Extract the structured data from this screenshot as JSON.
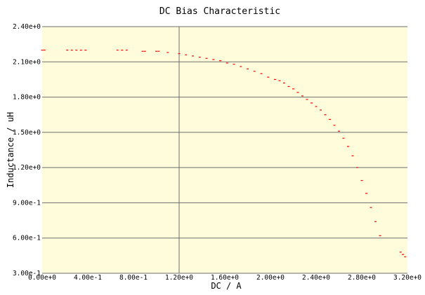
{
  "chart_data": {
    "type": "scatter",
    "title": "DC Bias Characteristic",
    "xlabel": "DC / A",
    "ylabel": "Inductance / uH",
    "xlim": [
      0.0,
      3.2
    ],
    "ylim": [
      0.3,
      2.4
    ],
    "x_ticks": [
      0.0,
      0.4,
      0.8,
      1.2,
      1.6,
      2.0,
      2.4,
      2.8,
      3.2
    ],
    "x_tick_labels": [
      "0.00e+0",
      "4.00e-1",
      "8.00e-1",
      "1.20e+0",
      "1.60e+0",
      "2.00e+0",
      "2.40e+0",
      "2.80e+0",
      "3.20e+0"
    ],
    "y_ticks": [
      0.3,
      0.6,
      0.9,
      1.2,
      1.5,
      1.8,
      2.1,
      2.4
    ],
    "y_tick_labels": [
      "3.00e-1",
      "6.00e-1",
      "9.00e-1",
      "1.20e+0",
      "1.50e+0",
      "1.80e+0",
      "2.10e+0",
      "2.40e+0"
    ],
    "grid": true,
    "plot_background": "#fffcdc",
    "series_color": "#ff0000",
    "grid_color": "#6e6e6e",
    "series": [
      {
        "points": [
          {
            "x": 0.0,
            "y": 2.2
          },
          {
            "x": 0.02,
            "y": 2.2
          },
          {
            "x": 0.22,
            "y": 2.2
          },
          {
            "x": 0.26,
            "y": 2.2
          },
          {
            "x": 0.3,
            "y": 2.2
          },
          {
            "x": 0.34,
            "y": 2.2
          },
          {
            "x": 0.38,
            "y": 2.2
          },
          {
            "x": 0.66,
            "y": 2.2
          },
          {
            "x": 0.7,
            "y": 2.2
          },
          {
            "x": 0.74,
            "y": 2.2
          },
          {
            "x": 0.88,
            "y": 2.19
          },
          {
            "x": 0.9,
            "y": 2.19
          },
          {
            "x": 1.0,
            "y": 2.19
          },
          {
            "x": 1.02,
            "y": 2.19
          },
          {
            "x": 1.1,
            "y": 2.18
          },
          {
            "x": 1.2,
            "y": 2.17
          },
          {
            "x": 1.26,
            "y": 2.16
          },
          {
            "x": 1.32,
            "y": 2.15
          },
          {
            "x": 1.38,
            "y": 2.14
          },
          {
            "x": 1.44,
            "y": 2.13
          },
          {
            "x": 1.5,
            "y": 2.12
          },
          {
            "x": 1.56,
            "y": 2.11
          },
          {
            "x": 1.62,
            "y": 2.09
          },
          {
            "x": 1.68,
            "y": 2.08
          },
          {
            "x": 1.74,
            "y": 2.06
          },
          {
            "x": 1.8,
            "y": 2.04
          },
          {
            "x": 1.86,
            "y": 2.02
          },
          {
            "x": 1.92,
            "y": 2.0
          },
          {
            "x": 1.98,
            "y": 1.97
          },
          {
            "x": 2.04,
            "y": 1.95
          },
          {
            "x": 2.08,
            "y": 1.94
          },
          {
            "x": 2.12,
            "y": 1.92
          },
          {
            "x": 2.16,
            "y": 1.89
          },
          {
            "x": 2.2,
            "y": 1.87
          },
          {
            "x": 2.24,
            "y": 1.84
          },
          {
            "x": 2.28,
            "y": 1.81
          },
          {
            "x": 2.32,
            "y": 1.78
          },
          {
            "x": 2.36,
            "y": 1.75
          },
          {
            "x": 2.4,
            "y": 1.72
          },
          {
            "x": 2.44,
            "y": 1.69
          },
          {
            "x": 2.48,
            "y": 1.65
          },
          {
            "x": 2.52,
            "y": 1.61
          },
          {
            "x": 2.56,
            "y": 1.56
          },
          {
            "x": 2.6,
            "y": 1.51
          },
          {
            "x": 2.64,
            "y": 1.45
          },
          {
            "x": 2.68,
            "y": 1.38
          },
          {
            "x": 2.72,
            "y": 1.3
          },
          {
            "x": 2.76,
            "y": 1.2
          },
          {
            "x": 2.8,
            "y": 1.09
          },
          {
            "x": 2.84,
            "y": 0.98
          },
          {
            "x": 2.88,
            "y": 0.86
          },
          {
            "x": 2.92,
            "y": 0.74
          },
          {
            "x": 2.96,
            "y": 0.62
          },
          {
            "x": 3.14,
            "y": 0.48
          },
          {
            "x": 3.16,
            "y": 0.46
          },
          {
            "x": 3.18,
            "y": 0.44
          }
        ]
      }
    ]
  }
}
